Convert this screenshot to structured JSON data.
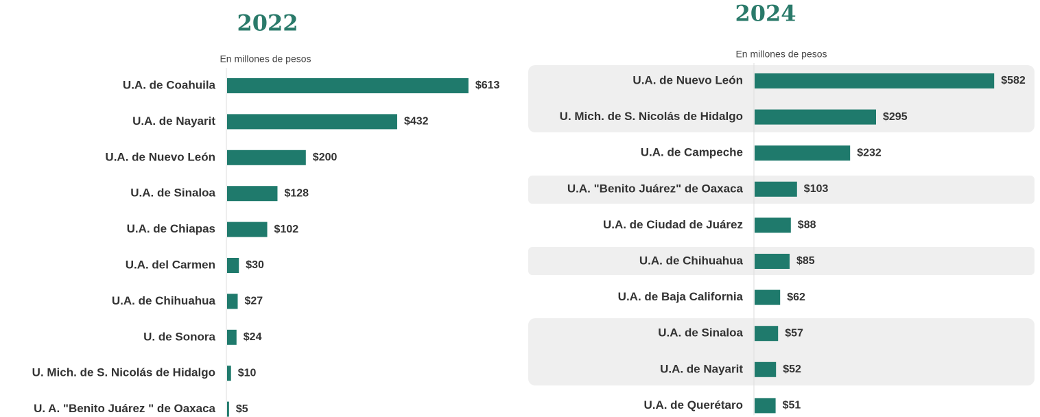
{
  "chart_data": [
    {
      "type": "barh",
      "title": "2022",
      "subtitle": "En millones de pesos",
      "color": "#1f7a6c",
      "categories": [
        "U.A. de Coahuila",
        "U.A. de Nayarit",
        "U.A. de Nuevo León",
        "U.A. de Sinaloa",
        "U.A. de Chiapas",
        "U.A. del Carmen",
        "U.A. de Chihuahua",
        "U. de Sonora",
        "U. Mich. de S. Nicolás de Hidalgo",
        "U. A. \"Benito Juárez \" de Oaxaca"
      ],
      "values": [
        613,
        432,
        200,
        128,
        102,
        30,
        27,
        24,
        10,
        5
      ],
      "value_labels": [
        "$613",
        "$432",
        "$200",
        "$128",
        "$102",
        "$30",
        "$27",
        "$24",
        "$10",
        "$5"
      ]
    },
    {
      "type": "barh",
      "title": "2024",
      "subtitle": "En millones de pesos",
      "color": "#1f7a6c",
      "categories": [
        "U.A. de Nuevo León",
        "U. Mich. de S. Nicolás de Hidalgo",
        "U.A. de Campeche",
        "U.A. \"Benito Juárez\" de Oaxaca",
        "U.A. de Ciudad de Juárez",
        "U.A. de Chihuahua",
        "U.A. de Baja California",
        "U.A. de Sinaloa",
        "U.A. de Nayarit",
        "U.A. de Querétaro"
      ],
      "values": [
        582,
        295,
        232,
        103,
        88,
        85,
        62,
        57,
        52,
        51
      ],
      "value_labels": [
        "$582",
        "$295",
        "$232",
        "$103",
        "$88",
        "$85",
        "$62",
        "$57",
        "$52",
        "$51"
      ]
    }
  ]
}
